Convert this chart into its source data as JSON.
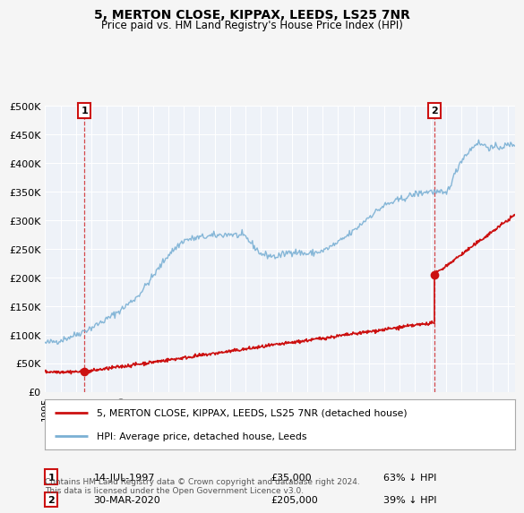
{
  "title": "5, MERTON CLOSE, KIPPAX, LEEDS, LS25 7NR",
  "subtitle": "Price paid vs. HM Land Registry's House Price Index (HPI)",
  "ylim": [
    0,
    500000
  ],
  "yticks": [
    0,
    50000,
    100000,
    150000,
    200000,
    250000,
    300000,
    350000,
    400000,
    450000,
    500000
  ],
  "ytick_labels": [
    "£0",
    "£50K",
    "£100K",
    "£150K",
    "£200K",
    "£250K",
    "£300K",
    "£350K",
    "£400K",
    "£450K",
    "£500K"
  ],
  "background_color": "#f5f5f5",
  "plot_bg": "#eef2f8",
  "grid_color": "#ffffff",
  "hpi_color": "#7ab0d4",
  "price_color": "#cc1111",
  "transaction1_date": 1997.54,
  "transaction1_price": 35000,
  "transaction1_label": "1",
  "transaction2_date": 2020.24,
  "transaction2_price": 205000,
  "transaction2_label": "2",
  "legend_entry1": "5, MERTON CLOSE, KIPPAX, LEEDS, LS25 7NR (detached house)",
  "legend_entry2": "HPI: Average price, detached house, Leeds",
  "annotation1_date": "14-JUL-1997",
  "annotation1_price": "£35,000",
  "annotation1_hpi": "63% ↓ HPI",
  "annotation2_date": "30-MAR-2020",
  "annotation2_price": "£205,000",
  "annotation2_hpi": "39% ↓ HPI",
  "footer": "Contains HM Land Registry data © Crown copyright and database right 2024.\nThis data is licensed under the Open Government Licence v3.0.",
  "xlim_start": 1995.0,
  "xlim_end": 2025.5
}
